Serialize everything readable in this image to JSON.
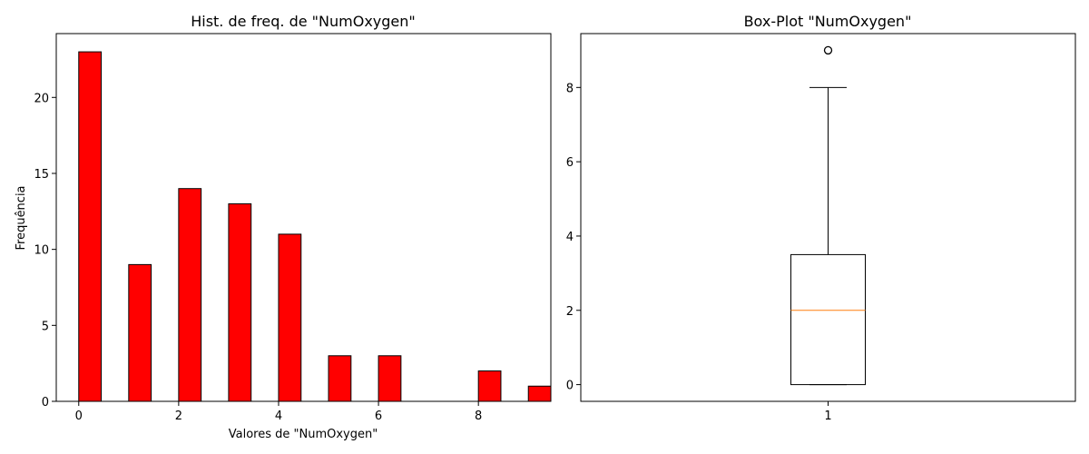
{
  "chart_data": [
    {
      "type": "bar",
      "title": "Hist. de freq. de \"NumOxygen\"",
      "xlabel": "Valores de \"NumOxygen\"",
      "ylabel": "Frequência",
      "bar_color": "#ff0000",
      "edge_color": "#000000",
      "x": [
        0,
        1,
        2,
        3,
        4,
        5,
        6,
        8,
        9
      ],
      "values": [
        23,
        9,
        14,
        13,
        11,
        3,
        3,
        2,
        1
      ],
      "bar_width": 0.45,
      "xlim": [
        -0.45,
        9.45
      ],
      "ylim": [
        0,
        24.2
      ],
      "xticks": [
        0,
        2,
        4,
        6,
        8
      ],
      "yticks": [
        0,
        5,
        10,
        15,
        20
      ],
      "grid": false
    },
    {
      "type": "box",
      "title": "Box-Plot \"NumOxygen\"",
      "category": "1",
      "min": 0,
      "q1": 0,
      "median": 2,
      "q3": 3.5,
      "max": 8,
      "outliers": [
        9
      ],
      "median_color": "#ff7f0e",
      "ylim": [
        -0.45,
        9.45
      ],
      "yticks": [
        0,
        2,
        4,
        6,
        8
      ],
      "grid": false
    }
  ]
}
